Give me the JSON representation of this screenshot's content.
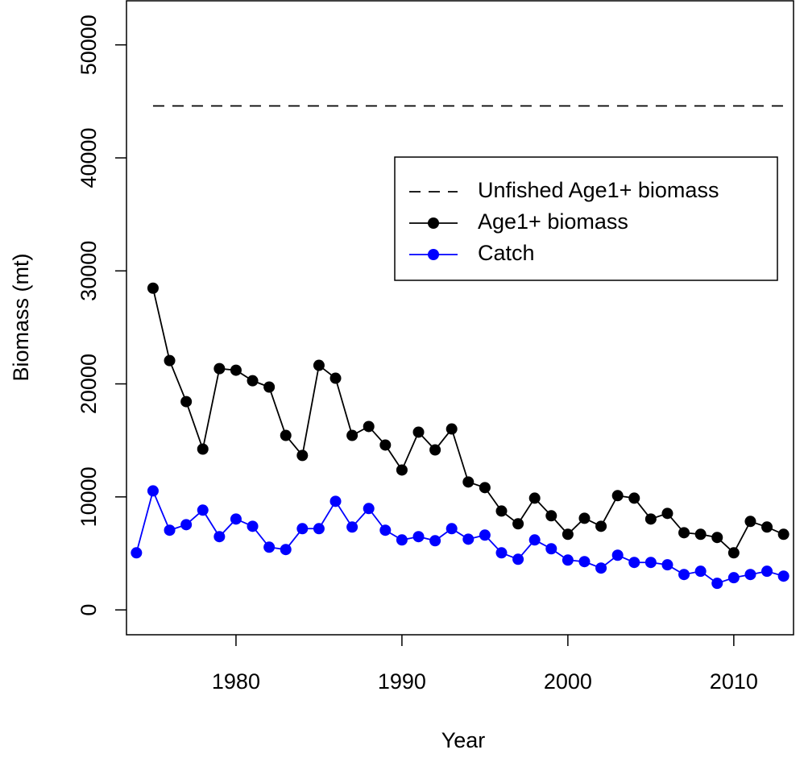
{
  "chart_data": {
    "type": "line",
    "xlabel": "Year",
    "ylabel": "Biomass (mt)",
    "xlim": [
      1973.4,
      2013.6
    ],
    "ylim": [
      -2200,
      53900
    ],
    "xticks": [
      1980,
      1990,
      2000,
      2010
    ],
    "yticks": [
      0,
      10000,
      20000,
      30000,
      40000,
      50000
    ],
    "legend": "upper right",
    "series": [
      {
        "name": "Unfished Age1+ biomass",
        "color": "#000000",
        "dashed": true,
        "markers": false,
        "x": [
          1975,
          2013
        ],
        "values": [
          44600,
          44600
        ]
      },
      {
        "name": "Age1+ biomass",
        "color": "#000000",
        "dashed": false,
        "markers": true,
        "x": [
          1975,
          1976,
          1977,
          1978,
          1979,
          1980,
          1981,
          1982,
          1983,
          1984,
          1985,
          1986,
          1987,
          1988,
          1989,
          1990,
          1991,
          1992,
          1993,
          1994,
          1995,
          1996,
          1997,
          1998,
          1999,
          2000,
          2001,
          2002,
          2003,
          2004,
          2005,
          2006,
          2007,
          2008,
          2009,
          2010,
          2011,
          2012,
          2013
        ],
        "values": [
          28470,
          22060,
          18430,
          14230,
          21350,
          21210,
          20280,
          19720,
          15440,
          13670,
          21640,
          20500,
          15440,
          16230,
          14590,
          12380,
          15730,
          14160,
          16010,
          11320,
          10820,
          8750,
          7620,
          9890,
          8330,
          6690,
          8110,
          7400,
          10110,
          9890,
          8040,
          8540,
          6830,
          6690,
          6410,
          5050,
          7830,
          7330,
          6690
        ]
      },
      {
        "name": "Catch",
        "color": "#0000ff",
        "dashed": false,
        "markers": true,
        "x": [
          1974,
          1975,
          1976,
          1977,
          1978,
          1979,
          1980,
          1981,
          1982,
          1983,
          1984,
          1985,
          1986,
          1987,
          1988,
          1989,
          1990,
          1991,
          1992,
          1993,
          1994,
          1995,
          1996,
          1997,
          1998,
          1999,
          2000,
          2001,
          2002,
          2003,
          2004,
          2005,
          2006,
          2007,
          2008,
          2009,
          2010,
          2011,
          2012,
          2013
        ],
        "values": [
          5050,
          10530,
          7050,
          7540,
          8830,
          6480,
          8040,
          7400,
          5550,
          5340,
          7190,
          7190,
          9610,
          7330,
          8970,
          7050,
          6190,
          6480,
          6120,
          7190,
          6260,
          6620,
          5050,
          4480,
          6190,
          5410,
          4410,
          4270,
          3700,
          4840,
          4200,
          4200,
          3990,
          3130,
          3420,
          2350,
          2850,
          3130,
          3420,
          2990
        ]
      }
    ]
  }
}
